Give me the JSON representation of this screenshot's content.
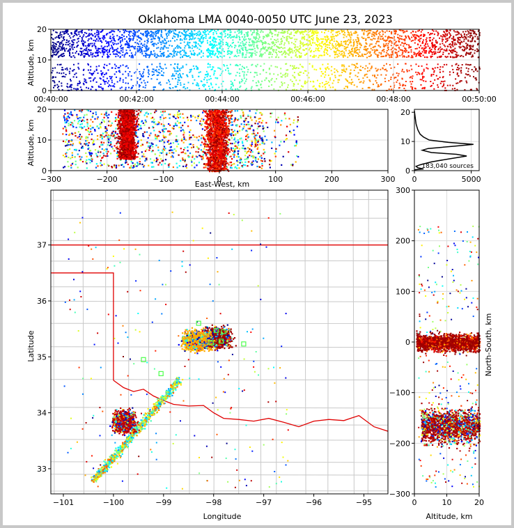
{
  "chart_data": [
    {
      "type": "scatter",
      "panel": "time-height",
      "title": "Oklahoma LMA 0040-0050 UTC June 23, 2023",
      "ylabel": "Altitude, km",
      "xlim": [
        "00:40:00",
        "00:50:00"
      ],
      "ylim": [
        0,
        20
      ],
      "x_ticks": [
        "00:40:00",
        "00:42:00",
        "00:44:00",
        "00:46:00",
        "00:48:00",
        "00:50:00"
      ],
      "y_ticks": [
        "0",
        "10",
        "20"
      ],
      "color_by": "time",
      "colormap": "jet"
    },
    {
      "type": "scatter",
      "panel": "east-west-altitude",
      "xlabel": "East-West, km",
      "ylabel": "Altitude, km",
      "xlim": [
        -300,
        300
      ],
      "ylim": [
        0,
        20
      ],
      "x_ticks": [
        "−300",
        "−200",
        "−100",
        "0",
        "100",
        "200",
        "300"
      ],
      "y_ticks": [
        "0",
        "10",
        "20"
      ],
      "clusters": [
        {
          "x_center": -165,
          "x_halfwidth": 25,
          "z_range": [
            4,
            20
          ]
        },
        {
          "x_center": -5,
          "x_halfwidth": 35,
          "z_range": [
            0,
            20
          ]
        }
      ]
    },
    {
      "type": "line",
      "panel": "altitude-histogram",
      "annotation": "183,040 sources",
      "xlim": [
        0,
        5700
      ],
      "ylim": [
        0,
        21
      ],
      "x_ticks": [
        "0",
        "5000"
      ],
      "y_ticks": [
        "0",
        "10",
        "20"
      ],
      "profile": [
        [
          0,
          0.3
        ],
        [
          800,
          0.6
        ],
        [
          300,
          1.0
        ],
        [
          150,
          1.5
        ],
        [
          500,
          2.0
        ],
        [
          1500,
          3.0
        ],
        [
          3000,
          4.0
        ],
        [
          4600,
          5.0
        ],
        [
          3700,
          5.6
        ],
        [
          1500,
          6.2
        ],
        [
          700,
          7.0
        ],
        [
          1200,
          7.6
        ],
        [
          3600,
          8.4
        ],
        [
          5200,
          9.0
        ],
        [
          3000,
          9.7
        ],
        [
          1300,
          10.5
        ],
        [
          800,
          11.5
        ],
        [
          500,
          12.5
        ],
        [
          300,
          14.0
        ],
        [
          150,
          16.0
        ],
        [
          80,
          18.0
        ],
        [
          30,
          19.5
        ],
        [
          0,
          20.5
        ]
      ]
    },
    {
      "type": "scatter",
      "panel": "plan-view",
      "xlabel": "Longitude",
      "ylabel": "Latitude",
      "xlim": [
        -101.25,
        -94.52
      ],
      "ylim": [
        32.55,
        37.98
      ],
      "x_ticks": [
        "−101",
        "−100",
        "−99",
        "−98",
        "−97",
        "−96",
        "−95"
      ],
      "y_ticks": [
        "33",
        "34",
        "35",
        "36",
        "37"
      ],
      "stations": [
        [
          -97.95,
          35.47
        ],
        [
          -97.8,
          35.45
        ],
        [
          -97.85,
          35.28
        ],
        [
          -98.05,
          35.25
        ],
        [
          -97.4,
          35.23
        ],
        [
          -98.3,
          35.6
        ],
        [
          -99.05,
          34.7
        ],
        [
          -99.4,
          34.95
        ]
      ],
      "clusters": [
        {
          "lon": -97.95,
          "lat": 35.35,
          "color": "#a00000"
        },
        {
          "lon": -98.35,
          "lat": 35.3,
          "color": "#ffaa00"
        },
        {
          "lon": -99.8,
          "lat": 33.85,
          "color": "#c00000"
        }
      ]
    },
    {
      "type": "scatter",
      "panel": "altitude-north-south",
      "xlabel": "Altitude, km",
      "ylabel": "North-South, km",
      "xlim": [
        0,
        20
      ],
      "ylim": [
        -300,
        300
      ],
      "x_ticks": [
        "0",
        "10",
        "20"
      ],
      "y_ticks": [
        "−300",
        "−200",
        "−100",
        "0",
        "100",
        "200",
        "300"
      ]
    }
  ]
}
